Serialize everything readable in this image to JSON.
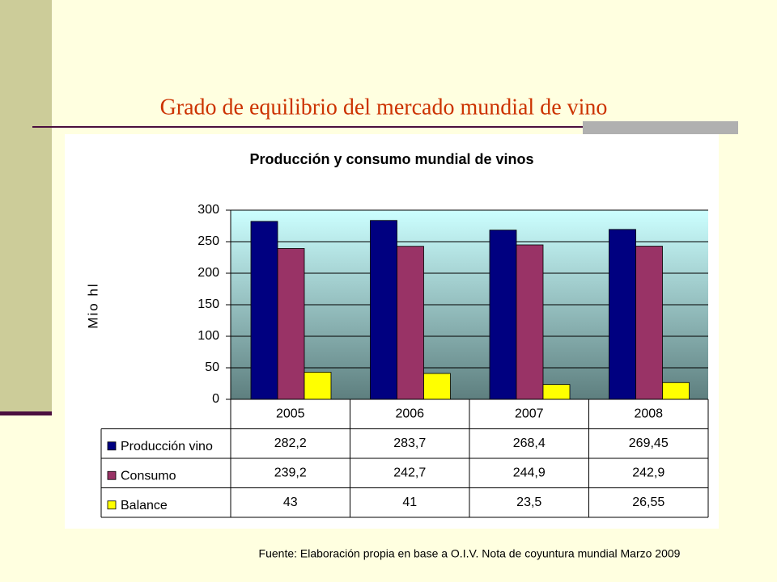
{
  "slide_title": "Grado de equilibrio del mercado mundial de vino",
  "source": "Fuente: Elaboración propia en base a O.I.V.  Nota de coyuntura mundial Marzo 2009",
  "chart_data": {
    "type": "bar",
    "title": "Producción y consumo mundial de vinos",
    "y_label": "Mio hl",
    "categories": [
      "2005",
      "2006",
      "2007",
      "2008"
    ],
    "series": [
      {
        "name": "Producción vino",
        "color": "#000080",
        "values": [
          282.2,
          283.7,
          268.4,
          269.45
        ],
        "value_labels": [
          "282,2",
          "283,7",
          "268,4",
          "269,45"
        ]
      },
      {
        "name": "Consumo",
        "color": "#993366",
        "values": [
          239.2,
          242.7,
          244.9,
          242.9
        ],
        "value_labels": [
          "239,2",
          "242,7",
          "244,9",
          "242,9"
        ]
      },
      {
        "name": "Balance",
        "color": "#FFFF00",
        "values": [
          43,
          41,
          23.5,
          26.55
        ],
        "value_labels": [
          "43",
          "41",
          "23,5",
          "26,55"
        ]
      }
    ],
    "ylim": [
      0,
      300
    ],
    "yticks": [
      0,
      50,
      100,
      150,
      200,
      250,
      300
    ],
    "grid": true
  }
}
